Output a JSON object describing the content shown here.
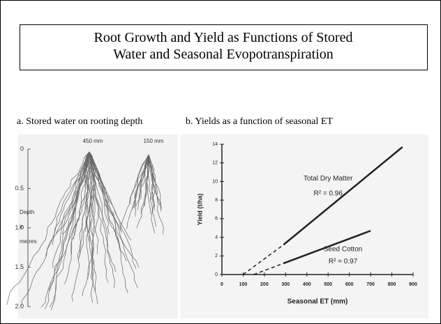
{
  "title": "Root Growth and Yield as Functions of Stored Water and Seasonal Evopotranspiration",
  "left": {
    "caption": "a. Stored water on rooting depth",
    "columns": [
      "450 mm",
      "150 mm"
    ],
    "depth_label": [
      "Depth",
      "in",
      "metres"
    ],
    "depth_ticks": [
      "0",
      "0.5",
      "1.0",
      "1.5",
      "2.0"
    ]
  },
  "right": {
    "caption": "b. Yields as a function of seasonal ET",
    "chart": {
      "type": "line",
      "xlabel": "Seasonal ET (mm)",
      "ylabel": "Yield (t/ha)",
      "xlim": [
        0,
        900
      ],
      "xticks": [
        0,
        100,
        200,
        300,
        400,
        500,
        600,
        700,
        800,
        900
      ],
      "ylim": [
        0,
        14
      ],
      "yticks": [
        0,
        2,
        4,
        6,
        8,
        10,
        12,
        14
      ],
      "series": [
        {
          "name": "Total Dry Matter",
          "annotation": "R² = 0.96",
          "color": "#222222",
          "x": [
            290,
            850
          ],
          "values": [
            3.2,
            13.7
          ],
          "dashed_x": [
            100,
            290
          ],
          "dashed_values": [
            0,
            3.2
          ]
        },
        {
          "name": "Seed Cotton",
          "annotation": "R² = 0.97",
          "color": "#222222",
          "x": [
            290,
            700
          ],
          "values": [
            1.2,
            4.7
          ],
          "dashed_x": [
            150,
            290
          ],
          "dashed_values": [
            0,
            1.2
          ]
        }
      ]
    }
  }
}
